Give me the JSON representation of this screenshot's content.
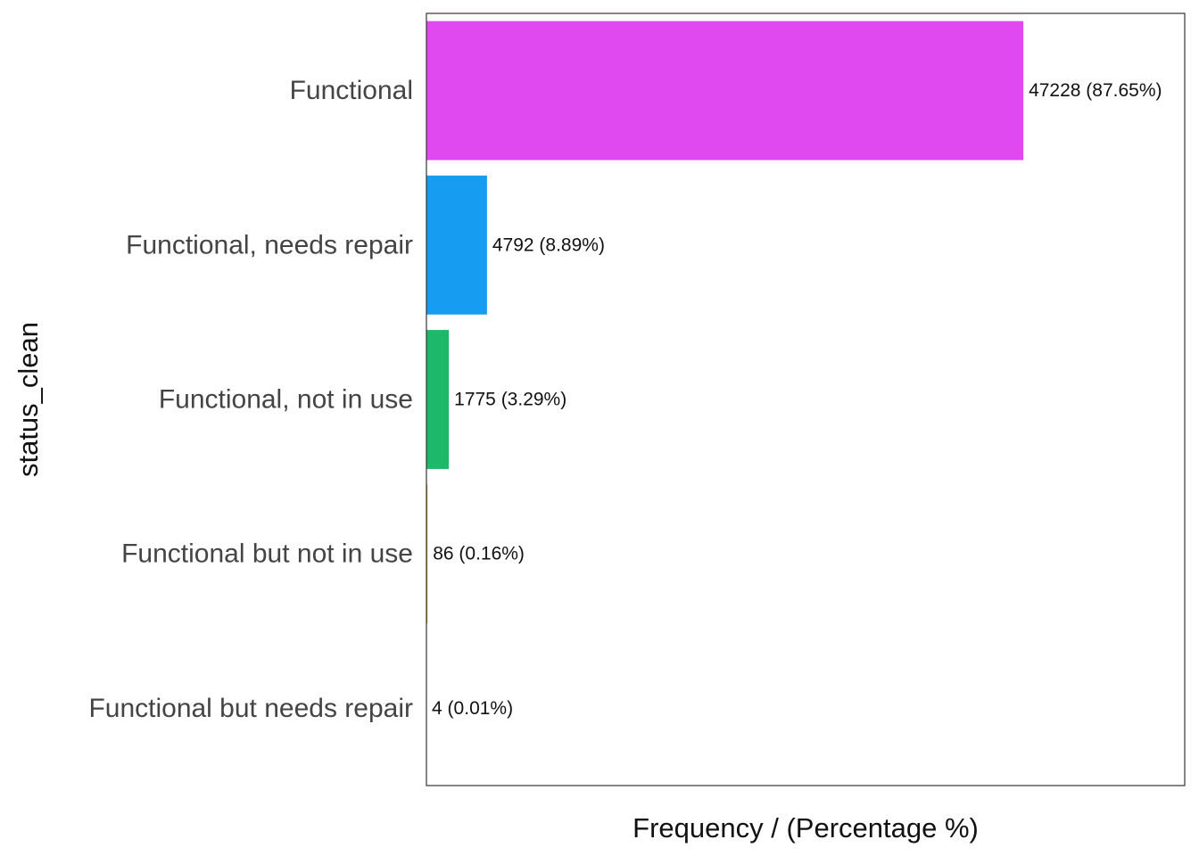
{
  "chart_data": {
    "type": "bar",
    "orientation": "horizontal",
    "categories": [
      "Functional",
      "Functional, needs repair",
      "Functional, not in use",
      "Functional but not in use",
      "Functional but needs repair"
    ],
    "values": [
      47228,
      4792,
      1775,
      86,
      4
    ],
    "percentages": [
      87.65,
      8.89,
      3.29,
      0.16,
      0.01
    ],
    "data_labels": [
      "47228 (87.65%)",
      "4792 (8.89%)",
      "1775 (3.29%)",
      "86 (0.16%)",
      "4 (0.01%)"
    ],
    "colors": [
      "#E048F0",
      "#169CF0",
      "#1DB86A",
      "#D9A700",
      "#F4776B"
    ],
    "xlabel": "Frequency / (Percentage %)",
    "ylabel": "status_clean",
    "xlim": [
      0,
      60000
    ],
    "grid": false,
    "legend": "none"
  }
}
